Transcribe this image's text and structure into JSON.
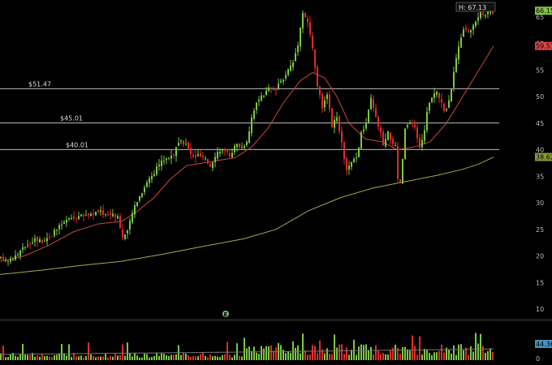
{
  "chart_data": {
    "type": "candlestick",
    "price_axis": {
      "ticks": [
        "65",
        "60",
        "55",
        "50",
        "45",
        "40",
        "35",
        "30",
        "25",
        "20",
        "15",
        "10"
      ],
      "tick_values": [
        65,
        60,
        55,
        50,
        45,
        40,
        35,
        30,
        25,
        20,
        15,
        10
      ],
      "range": [
        8,
        67.5
      ]
    },
    "volume_axis": {
      "ticks": [
        "0"
      ],
      "tick_values": [
        0
      ]
    },
    "horizontal_levels": [
      {
        "label": "$51.47",
        "value": 51.47
      },
      {
        "label": "$45.01",
        "value": 45.01
      },
      {
        "label": "$40.01",
        "value": 40.01
      }
    ],
    "high_marker": {
      "label": "H: 67.13",
      "value": 67.13
    },
    "price_tags": [
      {
        "label": "66.15",
        "value": 66.15,
        "color": "#7fc640"
      },
      {
        "label": "59.51",
        "value": 59.51,
        "color": "#d64545"
      },
      {
        "label": "38.62",
        "value": 38.62,
        "color": "#8a9a3a"
      }
    ],
    "volume_tag": {
      "label": "44.36",
      "color": "#4a8fbf"
    },
    "event_marker": {
      "label": "E"
    },
    "close_anchors": [
      [
        0,
        19.5
      ],
      [
        8,
        19.2
      ],
      [
        15,
        19.6
      ],
      [
        22,
        20.5
      ],
      [
        28,
        21.5
      ],
      [
        35,
        22.5
      ],
      [
        42,
        23.2
      ],
      [
        50,
        22.8
      ],
      [
        58,
        23.5
      ],
      [
        66,
        24.5
      ],
      [
        74,
        25.8
      ],
      [
        82,
        26.8
      ],
      [
        90,
        27.2
      ],
      [
        98,
        27.5
      ],
      [
        106,
        27.8
      ],
      [
        114,
        28
      ],
      [
        122,
        28.3
      ],
      [
        130,
        27.8
      ],
      [
        138,
        28
      ],
      [
        144,
        27.5
      ],
      [
        150,
        23.5
      ],
      [
        156,
        24.5
      ],
      [
        160,
        27
      ],
      [
        166,
        30
      ],
      [
        172,
        31.5
      ],
      [
        180,
        34
      ],
      [
        188,
        35.5
      ],
      [
        196,
        37.5
      ],
      [
        204,
        38.5
      ],
      [
        212,
        39
      ],
      [
        220,
        41.5
      ],
      [
        228,
        41
      ],
      [
        236,
        38.5
      ],
      [
        244,
        39
      ],
      [
        252,
        38
      ],
      [
        258,
        37
      ],
      [
        264,
        39
      ],
      [
        270,
        40
      ],
      [
        276,
        39.5
      ],
      [
        282,
        39
      ],
      [
        290,
        41
      ],
      [
        298,
        40.5
      ],
      [
        304,
        42
      ],
      [
        310,
        47
      ],
      [
        316,
        49
      ],
      [
        322,
        50
      ],
      [
        330,
        51.5
      ],
      [
        338,
        51
      ],
      [
        346,
        53
      ],
      [
        354,
        55
      ],
      [
        360,
        56.5
      ],
      [
        366,
        60
      ],
      [
        372,
        66
      ],
      [
        378,
        64
      ],
      [
        384,
        59
      ],
      [
        390,
        52
      ],
      [
        396,
        48
      ],
      [
        402,
        50
      ],
      [
        408,
        44.5
      ],
      [
        414,
        46
      ],
      [
        420,
        41
      ],
      [
        426,
        36
      ],
      [
        432,
        37.5
      ],
      [
        438,
        38.5
      ],
      [
        444,
        43
      ],
      [
        450,
        45
      ],
      [
        456,
        49.5
      ],
      [
        462,
        46
      ],
      [
        468,
        43
      ],
      [
        472,
        40
      ],
      [
        476,
        43.5
      ],
      [
        480,
        42
      ],
      [
        486,
        40.5
      ],
      [
        490,
        32
      ],
      [
        494,
        36
      ],
      [
        498,
        44
      ],
      [
        504,
        45
      ],
      [
        510,
        44
      ],
      [
        516,
        40.5
      ],
      [
        520,
        42
      ],
      [
        526,
        48
      ],
      [
        532,
        50
      ],
      [
        538,
        51
      ],
      [
        544,
        48
      ],
      [
        548,
        47
      ],
      [
        554,
        51
      ],
      [
        560,
        56
      ],
      [
        566,
        61
      ],
      [
        572,
        63
      ],
      [
        578,
        62
      ],
      [
        584,
        64
      ],
      [
        590,
        65.5
      ],
      [
        596,
        65.5
      ],
      [
        602,
        66.5
      ],
      [
        608,
        65
      ]
    ],
    "ma_short": [
      [
        0,
        19
      ],
      [
        30,
        20
      ],
      [
        60,
        22
      ],
      [
        90,
        24.5
      ],
      [
        120,
        26
      ],
      [
        150,
        26.5
      ],
      [
        170,
        28.5
      ],
      [
        190,
        31
      ],
      [
        210,
        34.5
      ],
      [
        230,
        37
      ],
      [
        250,
        37.5
      ],
      [
        270,
        38
      ],
      [
        290,
        38.5
      ],
      [
        310,
        40.5
      ],
      [
        330,
        44
      ],
      [
        350,
        49
      ],
      [
        370,
        53
      ],
      [
        385,
        54.5
      ],
      [
        400,
        53.5
      ],
      [
        415,
        50
      ],
      [
        430,
        45
      ],
      [
        450,
        42
      ],
      [
        470,
        41.5
      ],
      [
        490,
        40
      ],
      [
        510,
        40.5
      ],
      [
        530,
        41.5
      ],
      [
        550,
        45
      ],
      [
        570,
        50
      ],
      [
        590,
        55
      ],
      [
        608,
        59.5
      ]
    ],
    "ma_long": [
      [
        0,
        16.5
      ],
      [
        50,
        17.3
      ],
      [
        100,
        18.2
      ],
      [
        150,
        19
      ],
      [
        200,
        20.3
      ],
      [
        250,
        21.8
      ],
      [
        300,
        23.2
      ],
      [
        340,
        25
      ],
      [
        380,
        28.5
      ],
      [
        420,
        31
      ],
      [
        460,
        32.8
      ],
      [
        500,
        34
      ],
      [
        540,
        35.2
      ],
      [
        570,
        36.3
      ],
      [
        590,
        37.3
      ],
      [
        608,
        38.6
      ]
    ],
    "xlabel": "",
    "ylabel": "",
    "grid": false
  }
}
